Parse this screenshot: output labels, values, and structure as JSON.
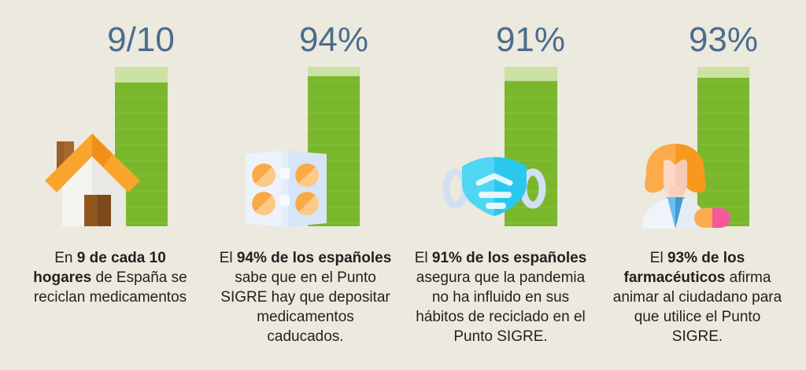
{
  "page": {
    "background": "#ECE9DE"
  },
  "chart_data": {
    "type": "bar",
    "title": "",
    "orientation": "vertical",
    "categories": [
      "En 9 de cada 10 hogares de España se reciclan medicamentos",
      "El 94% de los españoles sabe que en el Punto SIGRE hay que depositar medicamentos caducados.",
      "El 91% de los españoles asegura que la pandemia no ha influido en sus hábitos de reciclado en el Punto SIGRE.",
      "El 93% de los farmacéuticos afirma animar al ciudadano para que utilice el Punto SIGRE."
    ],
    "values": [
      90,
      94,
      91,
      93
    ],
    "value_labels": [
      "9/10",
      "94%",
      "91%",
      "93%"
    ],
    "ylim": [
      0,
      100
    ],
    "grid": false,
    "legend": "none",
    "bar_color": "#7AB72D",
    "remainder_color": "#CBE2A4"
  },
  "columns": [
    {
      "stat_label": "9/10",
      "percent": 90,
      "icon": "house-icon",
      "caption_prefix": "En ",
      "caption_bold": "9 de cada 10 hogares",
      "caption_rest": " de España se reciclan medicamentos"
    },
    {
      "stat_label": "94%",
      "percent": 94,
      "icon": "blister-pack-icon",
      "caption_prefix": "El ",
      "caption_bold": "94% de los españoles",
      "caption_rest": " sabe que en el Punto SIGRE hay que depositar medicamentos caducados."
    },
    {
      "stat_label": "91%",
      "percent": 91,
      "icon": "face-mask-icon",
      "caption_prefix": "El ",
      "caption_bold": "91% de los españoles",
      "caption_rest": " asegura que la pandemia no ha influido en sus hábitos de reciclado en el Punto SIGRE."
    },
    {
      "stat_label": "93%",
      "percent": 93,
      "icon": "pharmacist-icon",
      "caption_prefix": "El ",
      "caption_bold": "93% de los farmacéuticos",
      "caption_rest": " afirma animar al ciudadano para que utilice el Punto SIGRE."
    }
  ],
  "colors": {
    "background": "#ECE9DE",
    "stat_number": "#4A6D8D",
    "caption_text": "#231F20",
    "bar_fill": "#7AB72D",
    "bar_remainder": "#CBE2A4",
    "house_roof_orange": "#F9A42C",
    "blister_panel_blue": "#D6E5F8",
    "pill_orange": "#F9A945",
    "mask_cyan": "#3ACFEF",
    "capsule_pink": "#F7589A"
  }
}
